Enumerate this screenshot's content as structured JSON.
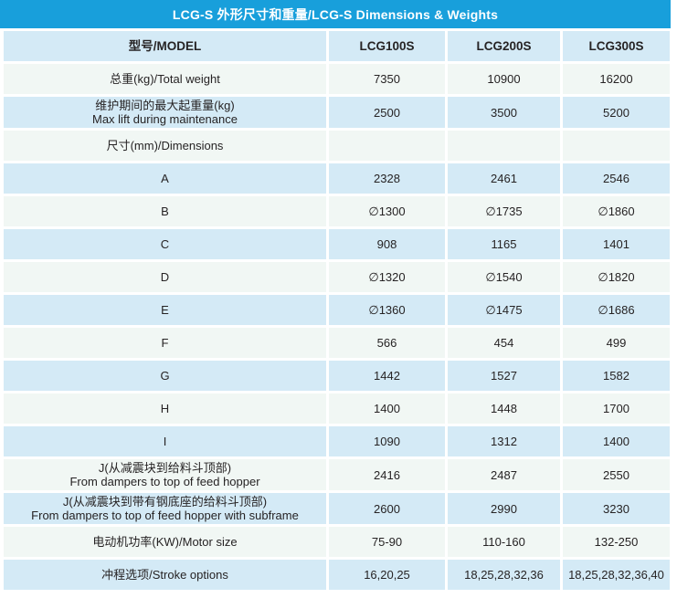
{
  "title": "LCG-S 外形尺寸和重量/LCG-S Dimensions & Weights",
  "colors": {
    "header_bg": "#189fdb",
    "row_blue": "#d4eaf6",
    "row_pale": "#f1f7f4",
    "text": "#262324",
    "title_text": "#ffffff"
  },
  "table": {
    "header": {
      "model_label": "型号/MODEL",
      "columns": [
        "LCG100S",
        "LCG200S",
        "LCG300S"
      ]
    },
    "rows": [
      {
        "line1": "总重(kg)/Total weight",
        "line2": "",
        "values": [
          "7350",
          "10900",
          "16200"
        ]
      },
      {
        "line1": "维护期间的最大起重量(kg)",
        "line2": "Max lift during maintenance",
        "values": [
          "2500",
          "3500",
          "5200"
        ]
      },
      {
        "line1": "尺寸(mm)/Dimensions",
        "line2": "",
        "values": [
          "",
          "",
          ""
        ]
      },
      {
        "line1": "A",
        "line2": "",
        "values": [
          "2328",
          "2461",
          "2546"
        ]
      },
      {
        "line1": "B",
        "line2": "",
        "values": [
          "∅1300",
          "∅1735",
          "∅1860"
        ]
      },
      {
        "line1": "C",
        "line2": "",
        "values": [
          "908",
          "1165",
          "1401"
        ]
      },
      {
        "line1": "D",
        "line2": "",
        "values": [
          "∅1320",
          "∅1540",
          "∅1820"
        ]
      },
      {
        "line1": "E",
        "line2": "",
        "values": [
          "∅1360",
          "∅1475",
          "∅1686"
        ]
      },
      {
        "line1": "F",
        "line2": "",
        "values": [
          "566",
          "454",
          "499"
        ]
      },
      {
        "line1": "G",
        "line2": "",
        "values": [
          "1442",
          "1527",
          "1582"
        ]
      },
      {
        "line1": "H",
        "line2": "",
        "values": [
          "1400",
          "1448",
          "1700"
        ]
      },
      {
        "line1": "I",
        "line2": "",
        "values": [
          "1090",
          "1312",
          "1400"
        ]
      },
      {
        "line1": "J(从减震块到给料斗顶部)",
        "line2": "From dampers to top of feed hopper",
        "values": [
          "2416",
          "2487",
          "2550"
        ]
      },
      {
        "line1": "J(从减震块到带有钢底座的给料斗顶部)",
        "line2": "From dampers to top of feed hopper with subframe",
        "values": [
          "2600",
          "2990",
          "3230"
        ]
      },
      {
        "line1": "电动机功率(KW)/Motor size",
        "line2": "",
        "values": [
          "75-90",
          "110-160",
          "132-250"
        ]
      },
      {
        "line1": "冲程选项/Stroke options",
        "line2": "",
        "values": [
          "16,20,25",
          "18,25,28,32,36",
          "18,25,28,32,36,40"
        ]
      }
    ]
  }
}
